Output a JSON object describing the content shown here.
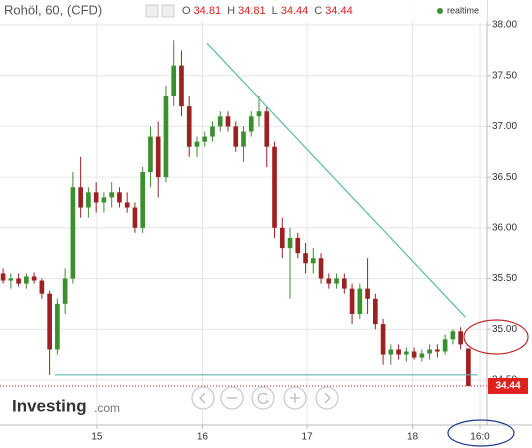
{
  "chart_data": {
    "type": "candlestick",
    "title": "Rohöl, 60, (CFD)",
    "quote": [
      {
        "label": "O",
        "value": 34.81
      },
      {
        "label": "H",
        "value": 34.81
      },
      {
        "label": "L",
        "value": 34.44
      },
      {
        "label": "C",
        "value": 34.44
      }
    ],
    "status": "realtime",
    "logo": "Investing",
    "logo_suffix": ".com",
    "open": [
      35.55,
      35.48,
      35.5,
      35.45,
      35.52,
      35.48,
      35.35,
      34.8,
      35.25,
      35.5,
      36.4,
      36.2,
      36.35,
      36.25,
      36.3,
      36.35,
      36.25,
      36.2,
      36.0,
      36.55,
      36.9,
      36.5,
      37.3,
      37.6,
      37.2,
      36.8,
      36.85,
      36.9,
      37.0,
      37.1,
      37.0,
      36.8,
      36.95,
      37.1,
      37.15,
      36.8,
      36.0,
      35.8,
      35.9,
      35.75,
      35.65,
      35.7,
      35.5,
      35.45,
      35.5,
      35.4,
      35.15,
      35.4,
      35.3,
      35.05,
      34.75,
      34.8,
      34.75,
      34.78,
      34.72,
      34.76,
      34.8,
      34.78,
      34.9,
      34.98,
      34.81
    ],
    "high": [
      35.6,
      35.55,
      35.55,
      35.55,
      35.56,
      35.5,
      35.38,
      35.3,
      35.6,
      36.55,
      36.7,
      36.4,
      36.45,
      36.35,
      36.45,
      36.4,
      36.35,
      36.25,
      36.6,
      37.0,
      37.05,
      37.4,
      37.85,
      37.75,
      37.3,
      36.9,
      36.95,
      37.05,
      37.15,
      37.15,
      37.05,
      37.0,
      37.15,
      37.3,
      37.2,
      36.85,
      36.1,
      36.0,
      35.95,
      35.85,
      35.8,
      35.75,
      35.55,
      35.55,
      35.55,
      35.45,
      35.45,
      35.7,
      35.35,
      35.1,
      34.85,
      34.85,
      34.82,
      34.82,
      34.8,
      34.85,
      34.85,
      34.95,
      35.0,
      35.02,
      34.81
    ],
    "low": [
      35.45,
      35.4,
      35.42,
      35.4,
      35.45,
      35.3,
      34.55,
      34.75,
      35.15,
      35.45,
      36.1,
      36.1,
      36.15,
      36.15,
      36.2,
      36.2,
      36.15,
      35.95,
      35.95,
      36.4,
      36.3,
      36.45,
      37.2,
      37.1,
      36.7,
      36.7,
      36.8,
      36.85,
      36.95,
      36.95,
      36.75,
      36.65,
      36.9,
      37.0,
      36.6,
      35.9,
      35.7,
      35.3,
      35.7,
      35.55,
      35.55,
      35.45,
      35.4,
      35.4,
      35.35,
      35.05,
      35.1,
      35.15,
      35.0,
      34.65,
      34.65,
      34.7,
      34.68,
      34.7,
      34.68,
      34.7,
      34.72,
      34.75,
      34.85,
      34.8,
      34.44
    ],
    "close": [
      35.48,
      35.5,
      35.45,
      35.52,
      35.48,
      35.35,
      34.8,
      35.25,
      35.5,
      36.4,
      36.2,
      36.35,
      36.25,
      36.3,
      36.35,
      36.25,
      36.2,
      36.0,
      36.55,
      36.9,
      36.5,
      37.3,
      37.6,
      37.2,
      36.8,
      36.85,
      36.9,
      37.0,
      37.1,
      37.0,
      36.8,
      36.95,
      37.1,
      37.15,
      36.8,
      36.0,
      35.8,
      35.9,
      35.75,
      35.65,
      35.7,
      35.5,
      35.45,
      35.5,
      35.4,
      35.15,
      35.4,
      35.3,
      35.05,
      34.75,
      34.8,
      34.75,
      34.78,
      34.72,
      34.76,
      34.8,
      34.78,
      34.9,
      34.98,
      34.85,
      34.44
    ],
    "up_color": "#3a8f2e",
    "down_color": "#9b2222",
    "xlim": [
      -0.4,
      62.4
    ],
    "ylim": [
      34.055,
      38.247
    ],
    "xticks": [
      {
        "value": 12.1,
        "label": "15"
      },
      {
        "value": 25.7,
        "label": "16"
      },
      {
        "value": 39.2,
        "label": "17"
      },
      {
        "value": 52.8,
        "label": "18"
      },
      {
        "value": 61.5,
        "label": "16:0"
      }
    ],
    "yticks": [
      {
        "value": 34.5,
        "label": "34.50"
      },
      {
        "value": 35,
        "label": "35.00"
      },
      {
        "value": 35.5,
        "label": "35.50"
      },
      {
        "value": 36,
        "label": "36.00"
      },
      {
        "value": 36.5,
        "label": "36.50"
      },
      {
        "value": 37,
        "label": "37.00"
      },
      {
        "value": 37.5,
        "label": "37.50"
      },
      {
        "value": 38,
        "label": "38.00"
      }
    ],
    "grid": true,
    "last_price": 34.44,
    "last_color": "#e0201c",
    "lines": [
      {
        "color": "#5fb9a8",
        "x": [
          26.3,
          59.6
        ],
        "y": [
          37.82,
          35.12
        ]
      },
      {
        "color": "#5fb9a8",
        "x": [
          6.7,
          61.2
        ],
        "y": [
          34.55,
          34.55
        ]
      }
    ]
  }
}
